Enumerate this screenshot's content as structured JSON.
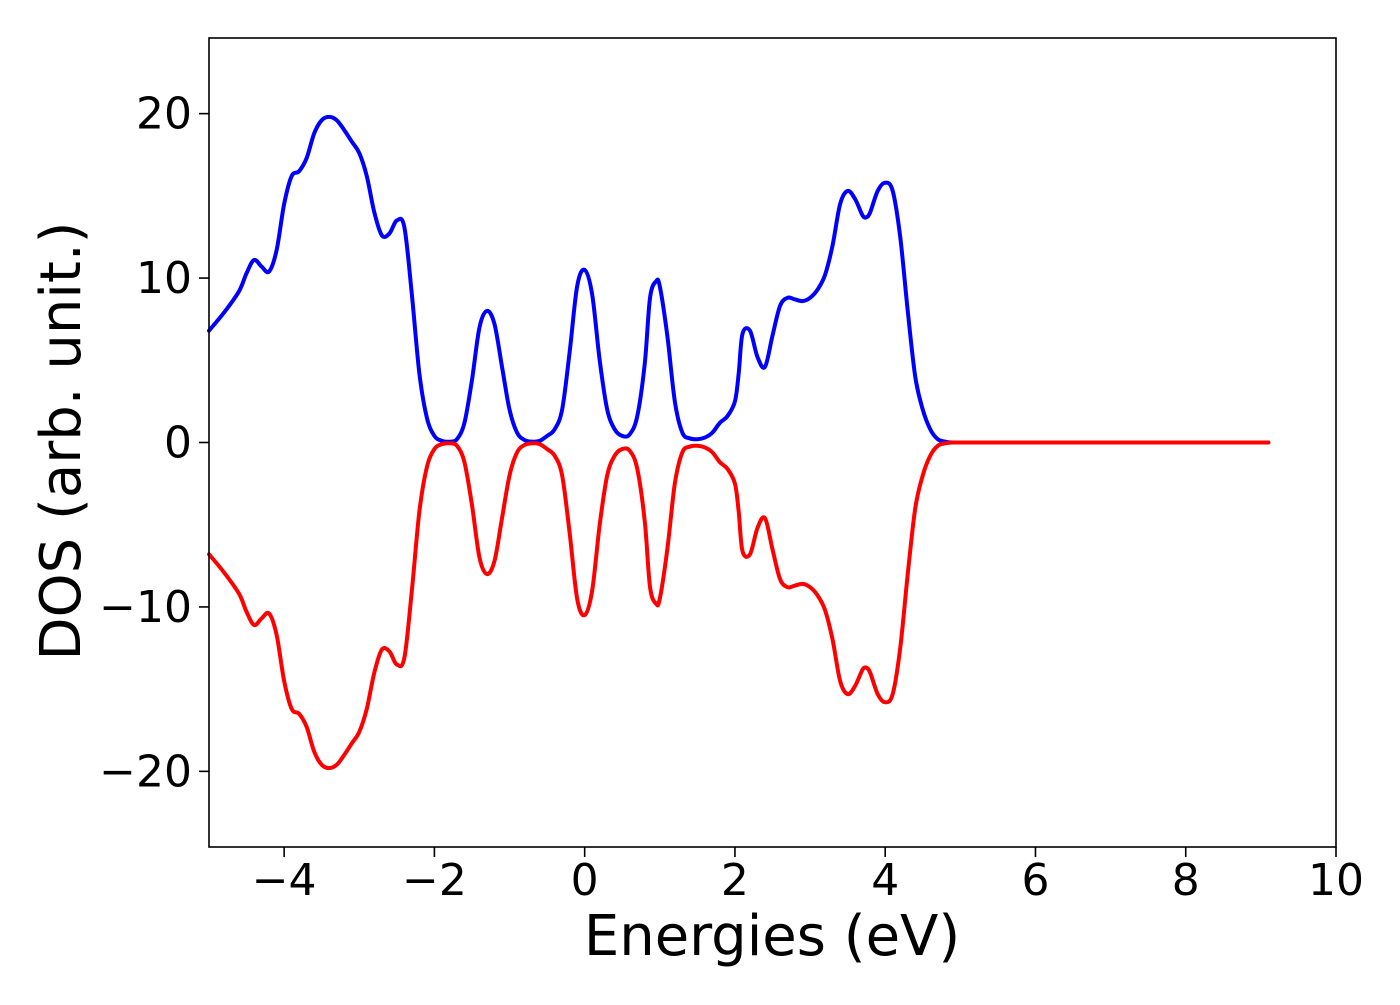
{
  "chart_data": {
    "type": "line",
    "title": "",
    "xlabel": "Energies (eV)",
    "ylabel": "DOS (arb. unit.)",
    "xlim": [
      -5,
      10
    ],
    "ylim": [
      -24.6,
      24.6
    ],
    "xticks": [
      -4,
      -2,
      0,
      2,
      4,
      6,
      8,
      10
    ],
    "xtick_labels": [
      "−4",
      "−2",
      "0",
      "2",
      "4",
      "6",
      "8",
      "10"
    ],
    "yticks": [
      -20,
      -10,
      0,
      10,
      20
    ],
    "ytick_labels": [
      "−20",
      "−10",
      "0",
      "10",
      "20"
    ],
    "grid": false,
    "legend": "none",
    "series": [
      {
        "color": "#0000ff",
        "mirror": false,
        "x": [
          -5.0,
          -4.8,
          -4.6,
          -4.5,
          -4.4,
          -4.3,
          -4.2,
          -4.1,
          -4.0,
          -3.9,
          -3.8,
          -3.7,
          -3.6,
          -3.5,
          -3.4,
          -3.3,
          -3.2,
          -3.1,
          -3.0,
          -2.9,
          -2.8,
          -2.7,
          -2.6,
          -2.5,
          -2.4,
          -2.3,
          -2.2,
          -2.1,
          -2.0,
          -1.9,
          -1.8,
          -1.7,
          -1.6,
          -1.5,
          -1.4,
          -1.3,
          -1.2,
          -1.1,
          -1.0,
          -0.9,
          -0.8,
          -0.7,
          -0.6,
          -0.5,
          -0.4,
          -0.3,
          -0.2,
          -0.1,
          0.0,
          0.1,
          0.2,
          0.3,
          0.4,
          0.5,
          0.6,
          0.7,
          0.8,
          0.87,
          0.95,
          1.0,
          1.1,
          1.2,
          1.3,
          1.4,
          1.5,
          1.6,
          1.7,
          1.8,
          1.9,
          2.0,
          2.05,
          2.1,
          2.2,
          2.3,
          2.4,
          2.5,
          2.6,
          2.7,
          2.8,
          2.9,
          3.0,
          3.1,
          3.2,
          3.3,
          3.4,
          3.5,
          3.6,
          3.7,
          3.75,
          3.8,
          3.9,
          4.0,
          4.1,
          4.2,
          4.3,
          4.4,
          4.5,
          4.6,
          4.7,
          4.8,
          4.9,
          5.0,
          5.1,
          5.2,
          5.3,
          5.4,
          5.5,
          5.55,
          5.6,
          5.7,
          5.8,
          5.9,
          6.0,
          6.1,
          6.2,
          6.3,
          6.4,
          6.5,
          6.6,
          6.7,
          6.8,
          7.0,
          7.5,
          8.0,
          8.5,
          9.1
        ],
        "y": [
          6.8,
          7.9,
          9.2,
          10.3,
          11.1,
          10.7,
          10.4,
          11.7,
          14.5,
          16.2,
          16.5,
          17.3,
          18.8,
          19.6,
          19.8,
          19.6,
          19.0,
          18.3,
          17.6,
          16.2,
          14.0,
          12.6,
          12.7,
          13.5,
          13.1,
          9.0,
          4.2,
          1.5,
          0.4,
          0.1,
          0.05,
          0.2,
          1.2,
          3.8,
          7.0,
          8.0,
          7.2,
          4.6,
          2.0,
          0.6,
          0.15,
          0.05,
          0.1,
          0.4,
          0.8,
          2.0,
          5.5,
          9.5,
          10.5,
          9.0,
          5.0,
          2.0,
          0.8,
          0.4,
          0.5,
          1.6,
          4.8,
          8.8,
          9.8,
          9.5,
          6.5,
          2.5,
          0.6,
          0.25,
          0.2,
          0.3,
          0.6,
          1.2,
          1.6,
          2.5,
          4.2,
          6.6,
          6.8,
          5.2,
          4.6,
          6.5,
          8.3,
          8.8,
          8.7,
          8.6,
          8.8,
          9.3,
          10.2,
          12.0,
          14.5,
          15.3,
          14.8,
          13.8,
          13.7,
          14.0,
          15.3,
          15.8,
          15.3,
          12.5,
          8.0,
          4.0,
          2.0,
          0.8,
          0.2,
          0.05,
          0.0,
          0.0,
          0.0,
          0.0,
          0.0,
          0.0,
          0.0,
          0.0,
          0.0,
          0.0,
          0.0,
          0.0,
          0.0,
          0.0,
          0.0,
          0.0,
          0.0,
          0.0,
          0.0,
          0.0,
          0.0,
          0.0,
          0.0,
          0.0,
          0.0,
          0.0
        ]
      },
      {
        "color": "#ff0000",
        "mirror": true
      }
    ]
  }
}
